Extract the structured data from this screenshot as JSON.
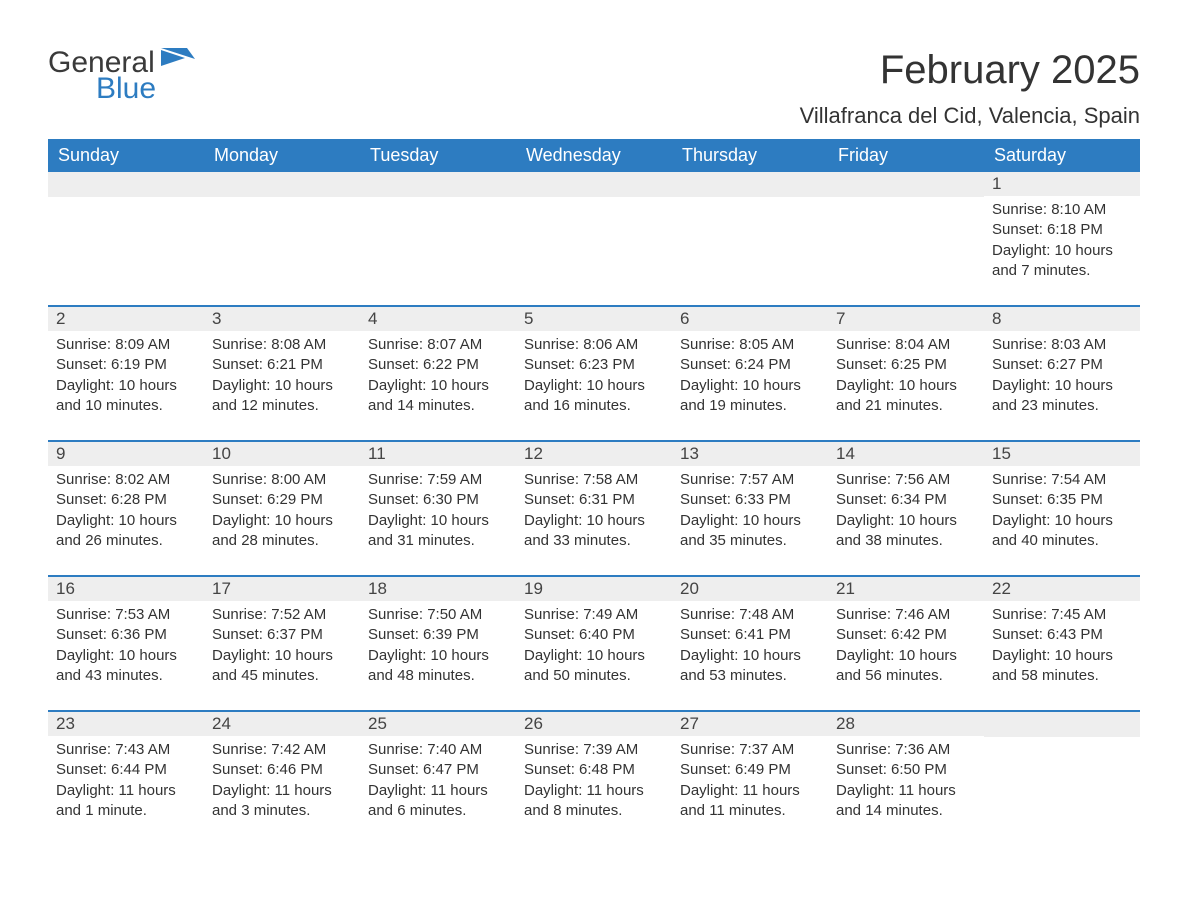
{
  "logo": {
    "text_general": "General",
    "text_blue": "Blue",
    "accent_color": "#2d7cc1"
  },
  "title": {
    "month": "February 2025",
    "location": "Villafranca del Cid, Valencia, Spain",
    "month_fontsize": 40,
    "location_fontsize": 22,
    "text_color": "#333333"
  },
  "calendar": {
    "header_bg": "#2d7cc1",
    "header_text_color": "#ffffff",
    "row_border_color": "#2d7cc1",
    "daynum_bg": "#eeeeee",
    "daynum_text_color": "#444444",
    "body_text_color": "#333333",
    "body_fontsize": 15,
    "header_fontsize": 18,
    "day_headers": [
      "Sunday",
      "Monday",
      "Tuesday",
      "Wednesday",
      "Thursday",
      "Friday",
      "Saturday"
    ],
    "weeks": [
      [
        {
          "empty": true
        },
        {
          "empty": true
        },
        {
          "empty": true
        },
        {
          "empty": true
        },
        {
          "empty": true
        },
        {
          "empty": true
        },
        {
          "day": "1",
          "sunrise": "Sunrise: 8:10 AM",
          "sunset": "Sunset: 6:18 PM",
          "daylight": "Daylight: 10 hours and 7 minutes."
        }
      ],
      [
        {
          "day": "2",
          "sunrise": "Sunrise: 8:09 AM",
          "sunset": "Sunset: 6:19 PM",
          "daylight": "Daylight: 10 hours and 10 minutes."
        },
        {
          "day": "3",
          "sunrise": "Sunrise: 8:08 AM",
          "sunset": "Sunset: 6:21 PM",
          "daylight": "Daylight: 10 hours and 12 minutes."
        },
        {
          "day": "4",
          "sunrise": "Sunrise: 8:07 AM",
          "sunset": "Sunset: 6:22 PM",
          "daylight": "Daylight: 10 hours and 14 minutes."
        },
        {
          "day": "5",
          "sunrise": "Sunrise: 8:06 AM",
          "sunset": "Sunset: 6:23 PM",
          "daylight": "Daylight: 10 hours and 16 minutes."
        },
        {
          "day": "6",
          "sunrise": "Sunrise: 8:05 AM",
          "sunset": "Sunset: 6:24 PM",
          "daylight": "Daylight: 10 hours and 19 minutes."
        },
        {
          "day": "7",
          "sunrise": "Sunrise: 8:04 AM",
          "sunset": "Sunset: 6:25 PM",
          "daylight": "Daylight: 10 hours and 21 minutes."
        },
        {
          "day": "8",
          "sunrise": "Sunrise: 8:03 AM",
          "sunset": "Sunset: 6:27 PM",
          "daylight": "Daylight: 10 hours and 23 minutes."
        }
      ],
      [
        {
          "day": "9",
          "sunrise": "Sunrise: 8:02 AM",
          "sunset": "Sunset: 6:28 PM",
          "daylight": "Daylight: 10 hours and 26 minutes."
        },
        {
          "day": "10",
          "sunrise": "Sunrise: 8:00 AM",
          "sunset": "Sunset: 6:29 PM",
          "daylight": "Daylight: 10 hours and 28 minutes."
        },
        {
          "day": "11",
          "sunrise": "Sunrise: 7:59 AM",
          "sunset": "Sunset: 6:30 PM",
          "daylight": "Daylight: 10 hours and 31 minutes."
        },
        {
          "day": "12",
          "sunrise": "Sunrise: 7:58 AM",
          "sunset": "Sunset: 6:31 PM",
          "daylight": "Daylight: 10 hours and 33 minutes."
        },
        {
          "day": "13",
          "sunrise": "Sunrise: 7:57 AM",
          "sunset": "Sunset: 6:33 PM",
          "daylight": "Daylight: 10 hours and 35 minutes."
        },
        {
          "day": "14",
          "sunrise": "Sunrise: 7:56 AM",
          "sunset": "Sunset: 6:34 PM",
          "daylight": "Daylight: 10 hours and 38 minutes."
        },
        {
          "day": "15",
          "sunrise": "Sunrise: 7:54 AM",
          "sunset": "Sunset: 6:35 PM",
          "daylight": "Daylight: 10 hours and 40 minutes."
        }
      ],
      [
        {
          "day": "16",
          "sunrise": "Sunrise: 7:53 AM",
          "sunset": "Sunset: 6:36 PM",
          "daylight": "Daylight: 10 hours and 43 minutes."
        },
        {
          "day": "17",
          "sunrise": "Sunrise: 7:52 AM",
          "sunset": "Sunset: 6:37 PM",
          "daylight": "Daylight: 10 hours and 45 minutes."
        },
        {
          "day": "18",
          "sunrise": "Sunrise: 7:50 AM",
          "sunset": "Sunset: 6:39 PM",
          "daylight": "Daylight: 10 hours and 48 minutes."
        },
        {
          "day": "19",
          "sunrise": "Sunrise: 7:49 AM",
          "sunset": "Sunset: 6:40 PM",
          "daylight": "Daylight: 10 hours and 50 minutes."
        },
        {
          "day": "20",
          "sunrise": "Sunrise: 7:48 AM",
          "sunset": "Sunset: 6:41 PM",
          "daylight": "Daylight: 10 hours and 53 minutes."
        },
        {
          "day": "21",
          "sunrise": "Sunrise: 7:46 AM",
          "sunset": "Sunset: 6:42 PM",
          "daylight": "Daylight: 10 hours and 56 minutes."
        },
        {
          "day": "22",
          "sunrise": "Sunrise: 7:45 AM",
          "sunset": "Sunset: 6:43 PM",
          "daylight": "Daylight: 10 hours and 58 minutes."
        }
      ],
      [
        {
          "day": "23",
          "sunrise": "Sunrise: 7:43 AM",
          "sunset": "Sunset: 6:44 PM",
          "daylight": "Daylight: 11 hours and 1 minute."
        },
        {
          "day": "24",
          "sunrise": "Sunrise: 7:42 AM",
          "sunset": "Sunset: 6:46 PM",
          "daylight": "Daylight: 11 hours and 3 minutes."
        },
        {
          "day": "25",
          "sunrise": "Sunrise: 7:40 AM",
          "sunset": "Sunset: 6:47 PM",
          "daylight": "Daylight: 11 hours and 6 minutes."
        },
        {
          "day": "26",
          "sunrise": "Sunrise: 7:39 AM",
          "sunset": "Sunset: 6:48 PM",
          "daylight": "Daylight: 11 hours and 8 minutes."
        },
        {
          "day": "27",
          "sunrise": "Sunrise: 7:37 AM",
          "sunset": "Sunset: 6:49 PM",
          "daylight": "Daylight: 11 hours and 11 minutes."
        },
        {
          "day": "28",
          "sunrise": "Sunrise: 7:36 AM",
          "sunset": "Sunset: 6:50 PM",
          "daylight": "Daylight: 11 hours and 14 minutes."
        },
        {
          "empty": true
        }
      ]
    ]
  }
}
